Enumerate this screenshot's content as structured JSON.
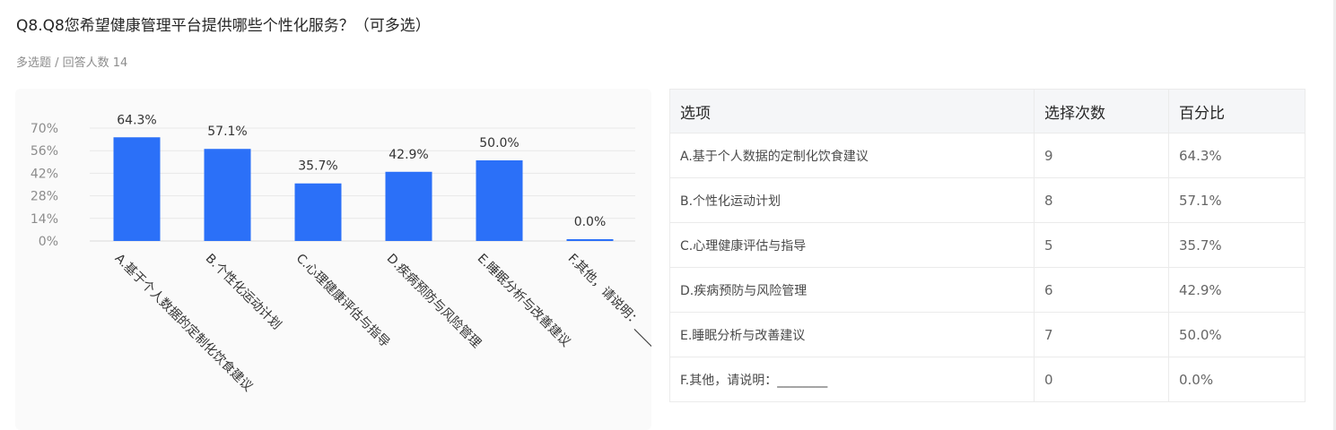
{
  "question": {
    "title": "Q8.Q8您希望健康管理平台提供哪些个性化服务？（可多选）",
    "meta": "多选题 / 回答人数 14"
  },
  "chart_data": {
    "type": "bar",
    "categories": [
      "A.基于个人数据的定制化饮食建议",
      "B.个性化运动计划",
      "C.心理健康评估与指导",
      "D.疾病预防与风险管理",
      "E.睡眠分析与改善建议",
      "F.其他，请说明：________"
    ],
    "values": [
      64.3,
      57.1,
      35.7,
      42.9,
      50.0,
      0.0
    ],
    "data_labels": [
      "64.3%",
      "57.1%",
      "35.7%",
      "42.9%",
      "50.0%",
      "0.0%"
    ],
    "yticks": [
      "0%",
      "14%",
      "28%",
      "42%",
      "56%",
      "70%"
    ],
    "ytick_values": [
      0,
      14,
      28,
      42,
      56,
      70
    ],
    "ylim": [
      0,
      70
    ],
    "unit": "%",
    "grid": true,
    "bar_color": "#2b70f8"
  },
  "table": {
    "headers": [
      "选项",
      "选择次数",
      "百分比"
    ],
    "rows": [
      [
        "A.基于个人数据的定制化饮食建议",
        "9",
        "64.3%"
      ],
      [
        "B.个性化运动计划",
        "8",
        "57.1%"
      ],
      [
        "C.心理健康评估与指导",
        "5",
        "35.7%"
      ],
      [
        "D.疾病预防与风险管理",
        "6",
        "42.9%"
      ],
      [
        "E.睡眠分析与改善建议",
        "7",
        "50.0%"
      ],
      [
        "F.其他，请说明：________",
        "0",
        "0.0%"
      ]
    ]
  }
}
